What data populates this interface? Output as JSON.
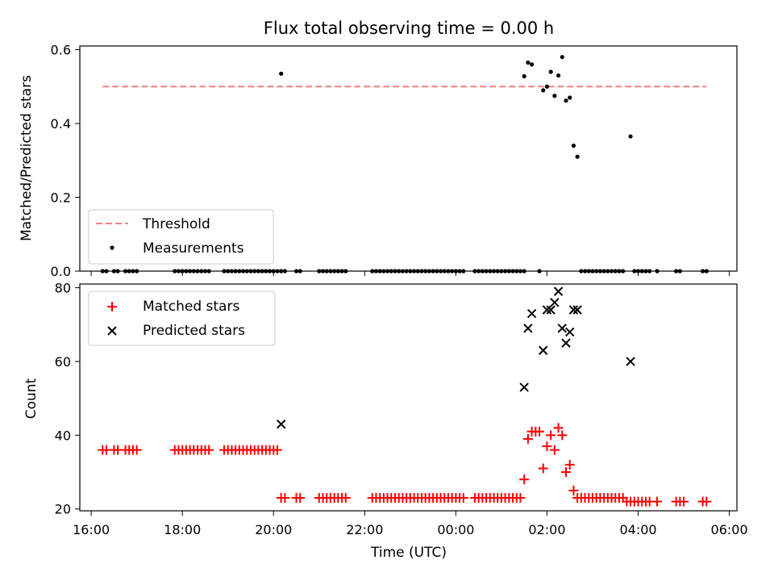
{
  "chart_data": [
    {
      "type": "scatter",
      "title": "Flux total observing time = 0.00 h",
      "xlabel": "",
      "ylabel": "Matched/Predicted stars",
      "xlim": [
        "15:45",
        "06:10"
      ],
      "ylim": [
        0,
        0.61
      ],
      "yticks": [
        0.0,
        0.2,
        0.4,
        0.6
      ],
      "yticklabels": [
        "0.0",
        "0.2",
        "0.4",
        "0.6"
      ],
      "legend_position": "lower-left",
      "threshold": {
        "name": "Threshold",
        "value": 0.5,
        "x": [
          "16:15",
          "05:30"
        ],
        "color": "#f08080"
      },
      "measurements": {
        "name": "Measurements",
        "color": "#000000",
        "points": [
          [
            "20:10",
            0.535
          ],
          [
            "01:30",
            0.528
          ],
          [
            "01:35",
            0.565
          ],
          [
            "01:40",
            0.56
          ],
          [
            "01:55",
            0.49
          ],
          [
            "02:00",
            0.5
          ],
          [
            "02:05",
            0.54
          ],
          [
            "02:10",
            0.475
          ],
          [
            "02:15",
            0.53
          ],
          [
            "02:20",
            0.58
          ],
          [
            "02:25",
            0.462
          ],
          [
            "02:30",
            0.47
          ],
          [
            "02:35",
            0.34
          ],
          [
            "02:40",
            0.31
          ],
          [
            "03:50",
            0.365
          ]
        ],
        "zero_times": [
          "16:15",
          "16:20",
          "16:30",
          "16:35",
          "16:45",
          "16:50",
          "16:55",
          "17:00",
          "17:50",
          "17:55",
          "18:00",
          "18:05",
          "18:10",
          "18:15",
          "18:20",
          "18:25",
          "18:30",
          "18:35",
          "18:55",
          "19:00",
          "19:05",
          "19:10",
          "19:15",
          "19:20",
          "19:25",
          "19:30",
          "19:35",
          "19:40",
          "19:45",
          "19:50",
          "19:55",
          "20:00",
          "20:05",
          "20:10",
          "20:15",
          "20:30",
          "20:35",
          "21:00",
          "21:05",
          "21:10",
          "21:15",
          "21:20",
          "21:25",
          "21:30",
          "21:35",
          "22:10",
          "22:15",
          "22:20",
          "22:25",
          "22:30",
          "22:35",
          "22:40",
          "22:45",
          "22:50",
          "22:55",
          "23:00",
          "23:05",
          "23:10",
          "23:15",
          "23:20",
          "23:25",
          "23:30",
          "23:35",
          "23:40",
          "23:45",
          "23:50",
          "23:55",
          "00:00",
          "00:05",
          "00:10",
          "00:25",
          "00:30",
          "00:35",
          "00:40",
          "00:45",
          "00:50",
          "00:55",
          "01:00",
          "01:05",
          "01:10",
          "01:15",
          "01:20",
          "01:25",
          "01:30",
          "01:50",
          "02:45",
          "02:50",
          "02:55",
          "03:00",
          "03:05",
          "03:10",
          "03:15",
          "03:20",
          "03:25",
          "03:30",
          "03:35",
          "03:40",
          "03:55",
          "04:00",
          "04:05",
          "04:10",
          "04:15",
          "04:25",
          "04:50",
          "04:55",
          "05:25",
          "05:30"
        ]
      }
    },
    {
      "type": "scatter",
      "title": "",
      "xlabel": "Time (UTC)",
      "ylabel": "Count",
      "xlim": [
        "15:45",
        "06:10"
      ],
      "ylim": [
        19.5,
        81
      ],
      "yticks": [
        20,
        40,
        60,
        80
      ],
      "yticklabels": [
        "20",
        "40",
        "60",
        "80"
      ],
      "xticks": [
        "16:00",
        "18:00",
        "20:00",
        "22:00",
        "00:00",
        "02:00",
        "04:00",
        "06:00"
      ],
      "legend_position": "upper-left",
      "series": [
        {
          "name": "Matched stars",
          "marker": "+",
          "color": "#ff0000",
          "points": [
            [
              "16:15",
              36
            ],
            [
              "16:20",
              36
            ],
            [
              "16:30",
              36
            ],
            [
              "16:35",
              36
            ],
            [
              "16:45",
              36
            ],
            [
              "16:50",
              36
            ],
            [
              "16:55",
              36
            ],
            [
              "17:00",
              36
            ],
            [
              "17:50",
              36
            ],
            [
              "17:55",
              36
            ],
            [
              "18:00",
              36
            ],
            [
              "18:05",
              36
            ],
            [
              "18:10",
              36
            ],
            [
              "18:15",
              36
            ],
            [
              "18:20",
              36
            ],
            [
              "18:25",
              36
            ],
            [
              "18:30",
              36
            ],
            [
              "18:35",
              36
            ],
            [
              "18:55",
              36
            ],
            [
              "19:00",
              36
            ],
            [
              "19:05",
              36
            ],
            [
              "19:10",
              36
            ],
            [
              "19:15",
              36
            ],
            [
              "19:20",
              36
            ],
            [
              "19:25",
              36
            ],
            [
              "19:30",
              36
            ],
            [
              "19:35",
              36
            ],
            [
              "19:40",
              36
            ],
            [
              "19:45",
              36
            ],
            [
              "19:50",
              36
            ],
            [
              "19:55",
              36
            ],
            [
              "20:00",
              36
            ],
            [
              "20:05",
              36
            ],
            [
              "20:10",
              23
            ],
            [
              "20:15",
              23
            ],
            [
              "20:30",
              23
            ],
            [
              "20:35",
              23
            ],
            [
              "21:00",
              23
            ],
            [
              "21:05",
              23
            ],
            [
              "21:10",
              23
            ],
            [
              "21:15",
              23
            ],
            [
              "21:20",
              23
            ],
            [
              "21:25",
              23
            ],
            [
              "21:30",
              23
            ],
            [
              "21:35",
              23
            ],
            [
              "22:10",
              23
            ],
            [
              "22:15",
              23
            ],
            [
              "22:20",
              23
            ],
            [
              "22:25",
              23
            ],
            [
              "22:30",
              23
            ],
            [
              "22:35",
              23
            ],
            [
              "22:40",
              23
            ],
            [
              "22:45",
              23
            ],
            [
              "22:50",
              23
            ],
            [
              "22:55",
              23
            ],
            [
              "23:00",
              23
            ],
            [
              "23:05",
              23
            ],
            [
              "23:10",
              23
            ],
            [
              "23:15",
              23
            ],
            [
              "23:20",
              23
            ],
            [
              "23:25",
              23
            ],
            [
              "23:30",
              23
            ],
            [
              "23:35",
              23
            ],
            [
              "23:40",
              23
            ],
            [
              "23:45",
              23
            ],
            [
              "23:50",
              23
            ],
            [
              "23:55",
              23
            ],
            [
              "00:00",
              23
            ],
            [
              "00:05",
              23
            ],
            [
              "00:10",
              23
            ],
            [
              "00:25",
              23
            ],
            [
              "00:30",
              23
            ],
            [
              "00:35",
              23
            ],
            [
              "00:40",
              23
            ],
            [
              "00:45",
              23
            ],
            [
              "00:50",
              23
            ],
            [
              "00:55",
              23
            ],
            [
              "01:00",
              23
            ],
            [
              "01:05",
              23
            ],
            [
              "01:10",
              23
            ],
            [
              "01:15",
              23
            ],
            [
              "01:20",
              23
            ],
            [
              "01:25",
              23
            ],
            [
              "01:30",
              28
            ],
            [
              "01:35",
              39
            ],
            [
              "01:40",
              41
            ],
            [
              "01:45",
              41
            ],
            [
              "01:50",
              41
            ],
            [
              "01:55",
              31
            ],
            [
              "02:00",
              37
            ],
            [
              "02:05",
              40
            ],
            [
              "02:10",
              36
            ],
            [
              "02:15",
              42
            ],
            [
              "02:20",
              40
            ],
            [
              "02:25",
              30
            ],
            [
              "02:30",
              32
            ],
            [
              "02:35",
              25
            ],
            [
              "02:40",
              23
            ],
            [
              "02:45",
              23
            ],
            [
              "02:50",
              23
            ],
            [
              "02:55",
              23
            ],
            [
              "03:00",
              23
            ],
            [
              "03:05",
              23
            ],
            [
              "03:10",
              23
            ],
            [
              "03:15",
              23
            ],
            [
              "03:20",
              23
            ],
            [
              "03:25",
              23
            ],
            [
              "03:30",
              23
            ],
            [
              "03:35",
              23
            ],
            [
              "03:40",
              23
            ],
            [
              "03:45",
              22
            ],
            [
              "03:50",
              22
            ],
            [
              "03:55",
              22
            ],
            [
              "04:00",
              22
            ],
            [
              "04:05",
              22
            ],
            [
              "04:10",
              22
            ],
            [
              "04:15",
              22
            ],
            [
              "04:25",
              22
            ],
            [
              "04:50",
              22
            ],
            [
              "04:55",
              22
            ],
            [
              "05:00",
              22
            ],
            [
              "05:25",
              22
            ],
            [
              "05:30",
              22
            ]
          ]
        },
        {
          "name": "Predicted stars",
          "marker": "x",
          "color": "#000000",
          "points": [
            [
              "20:10",
              43
            ],
            [
              "01:30",
              53
            ],
            [
              "01:35",
              69
            ],
            [
              "01:40",
              73
            ],
            [
              "01:55",
              63
            ],
            [
              "02:00",
              74
            ],
            [
              "02:05",
              74
            ],
            [
              "02:10",
              76
            ],
            [
              "02:15",
              79
            ],
            [
              "02:20",
              69
            ],
            [
              "02:25",
              65
            ],
            [
              "02:30",
              68
            ],
            [
              "02:35",
              74
            ],
            [
              "02:40",
              74
            ],
            [
              "03:50",
              60
            ]
          ]
        }
      ]
    }
  ]
}
